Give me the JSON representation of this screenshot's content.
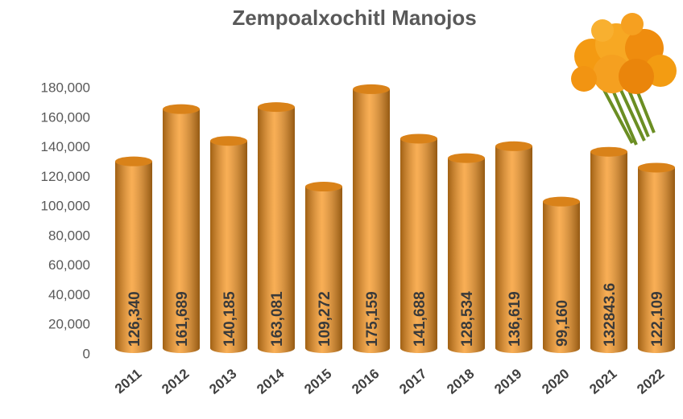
{
  "chart_data": {
    "type": "bar",
    "title": "Zempoalxochitl Manojos",
    "categories": [
      "2011",
      "2012",
      "2013",
      "2014",
      "2015",
      "2016",
      "2017",
      "2018",
      "2019",
      "2020",
      "2021",
      "2022"
    ],
    "values": [
      126340,
      161689,
      140185,
      163081,
      109272,
      175159,
      141688,
      128534,
      136619,
      99160,
      132843.6,
      122109
    ],
    "value_labels": [
      "126,340",
      "161,689",
      "140,185",
      "163,081",
      "109,272",
      "175,159",
      "141,688",
      "128,534",
      "136,619",
      "99,160",
      "132843.6",
      "122,109"
    ],
    "color": "#f7941d",
    "ylim": [
      0,
      180000
    ],
    "yticks": [
      0,
      {
        "value": 20000,
        "label": "20,000"
      },
      {
        "value": 40000,
        "label": "40,000"
      },
      {
        "value": 60000,
        "label": "60,000"
      },
      {
        "value": 80000,
        "label": "80,000"
      },
      {
        "value": 100000,
        "label": "100,000"
      },
      {
        "value": 120000,
        "label": "120,000"
      },
      {
        "value": 140000,
        "label": "140,000"
      },
      {
        "value": 160000,
        "label": "160,000"
      },
      {
        "value": 180000,
        "label": "180,000"
      }
    ],
    "grid": false
  }
}
